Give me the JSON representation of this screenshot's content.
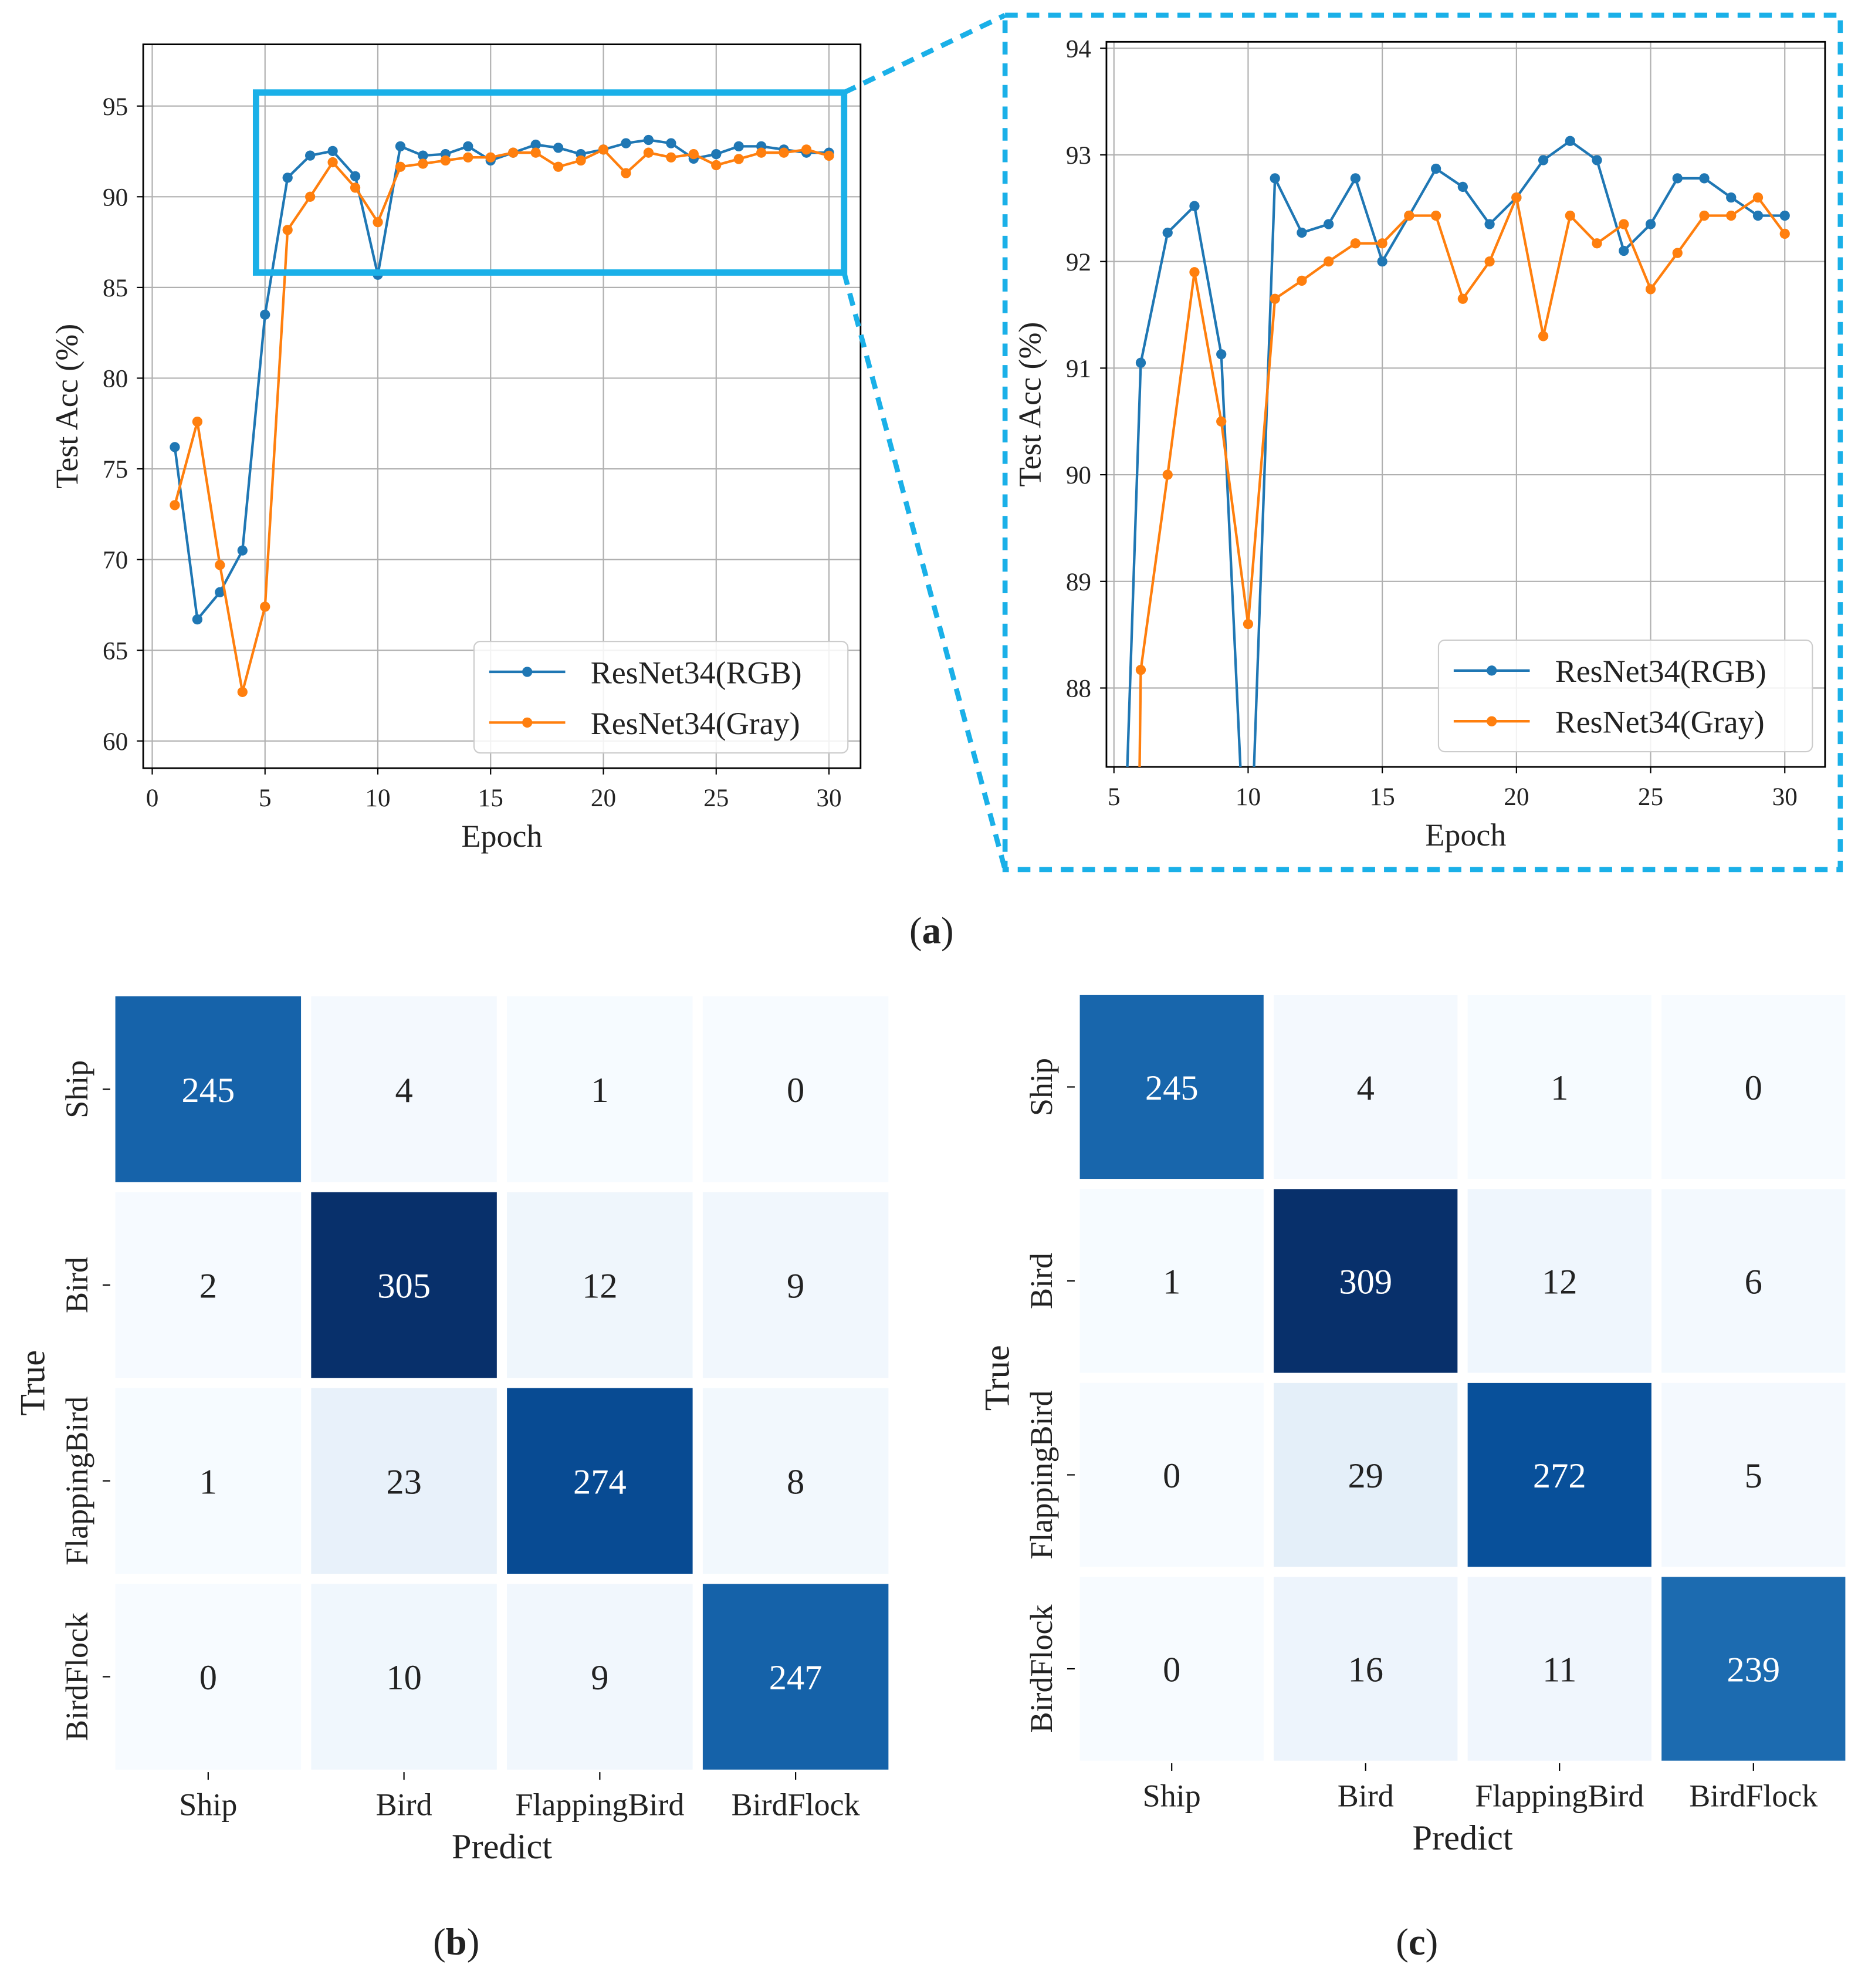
{
  "chart_data": [
    {
      "id": "a-full",
      "type": "line",
      "xlabel": "Epoch",
      "ylabel": "Test Acc (%)",
      "xlim": [
        -0.4,
        31.4
      ],
      "ylim": [
        58.5,
        98.4
      ],
      "xticks": [
        0,
        5,
        10,
        15,
        20,
        25,
        30
      ],
      "yticks": [
        60,
        65,
        70,
        75,
        80,
        85,
        90,
        95
      ],
      "grid": true,
      "legend": "bottom-right",
      "x": [
        1,
        2,
        3,
        4,
        5,
        6,
        7,
        8,
        9,
        10,
        11,
        12,
        13,
        14,
        15,
        16,
        17,
        18,
        19,
        20,
        21,
        22,
        23,
        24,
        25,
        26,
        27,
        28,
        29,
        30
      ],
      "series": [
        {
          "name": "ResNet34(RGB)",
          "color": "#1f77b4",
          "values": [
            76.2,
            66.7,
            68.2,
            70.5,
            83.5,
            91.05,
            92.27,
            92.52,
            91.13,
            85.7,
            92.78,
            92.27,
            92.35,
            92.78,
            92.0,
            92.43,
            92.87,
            92.7,
            92.35,
            92.6,
            92.95,
            93.13,
            92.95,
            92.1,
            92.35,
            92.78,
            92.78,
            92.6,
            92.43,
            92.43
          ]
        },
        {
          "name": "ResNet34(Gray)",
          "color": "#ff7f0e",
          "values": [
            73.0,
            77.6,
            69.7,
            62.7,
            67.4,
            88.17,
            90.0,
            91.9,
            90.5,
            88.6,
            91.65,
            91.82,
            92.0,
            92.17,
            92.17,
            92.43,
            92.43,
            91.65,
            92.0,
            92.6,
            91.3,
            92.43,
            92.17,
            92.35,
            91.74,
            92.08,
            92.43,
            92.43,
            92.6,
            92.26
          ]
        }
      ]
    },
    {
      "id": "a-zoom",
      "type": "line",
      "xlabel": "Epoch",
      "ylabel": "Test Acc (%)",
      "xlim": [
        4.72,
        31.5
      ],
      "ylim": [
        87.26,
        94.06
      ],
      "xticks": [
        5,
        10,
        15,
        20,
        25,
        30
      ],
      "yticks": [
        88,
        89,
        90,
        91,
        92,
        93,
        94
      ],
      "grid": true,
      "legend": "bottom-right"
    },
    {
      "id": "b",
      "type": "heatmap",
      "xlabel": "Predict",
      "ylabel": "True",
      "categories": [
        "Ship",
        "Bird",
        "FlappingBird",
        "BirdFlock"
      ],
      "values": [
        [
          245,
          4,
          1,
          0
        ],
        [
          2,
          305,
          12,
          9
        ],
        [
          1,
          23,
          274,
          8
        ],
        [
          0,
          10,
          9,
          247
        ]
      ]
    },
    {
      "id": "c",
      "type": "heatmap",
      "xlabel": "Predict",
      "ylabel": "True",
      "categories": [
        "Ship",
        "Bird",
        "FlappingBird",
        "BirdFlock"
      ],
      "values": [
        [
          245,
          4,
          1,
          0
        ],
        [
          1,
          309,
          12,
          6
        ],
        [
          0,
          29,
          272,
          5
        ],
        [
          0,
          16,
          11,
          239
        ]
      ]
    }
  ],
  "captions": {
    "a": "a",
    "b": "b",
    "c": "c"
  },
  "highlight_color": "#1ab0e8"
}
